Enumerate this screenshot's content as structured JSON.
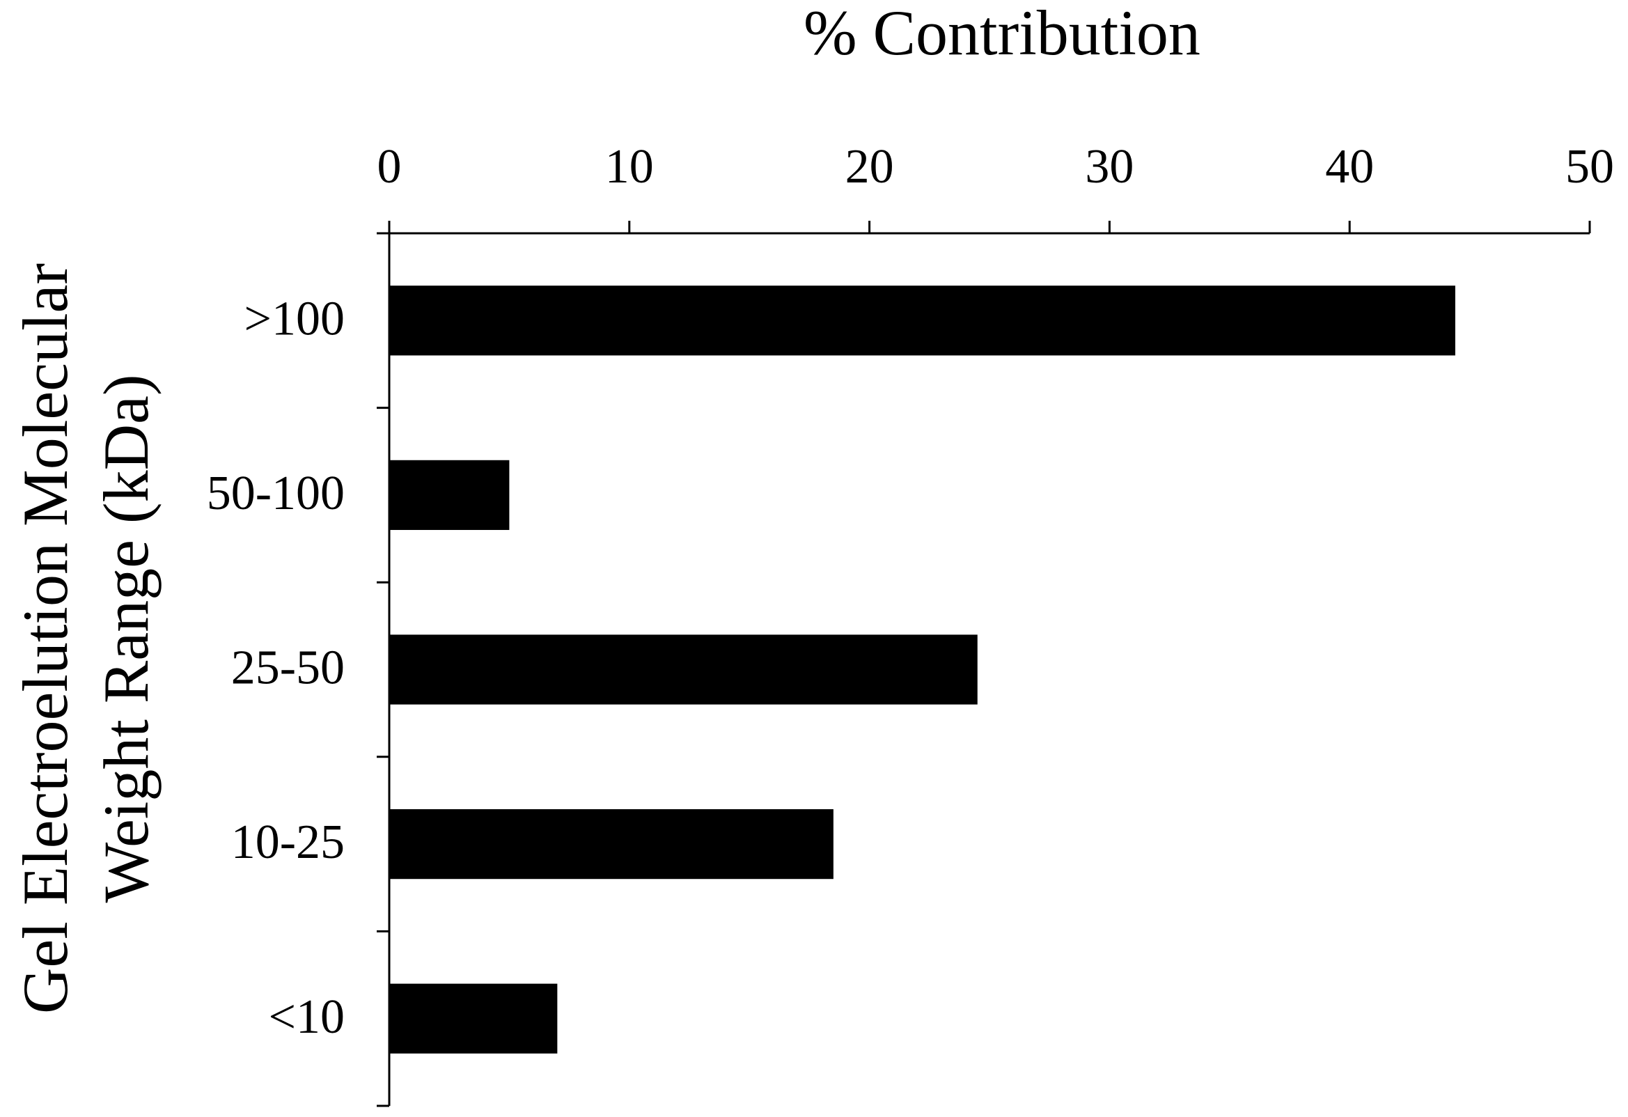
{
  "chart_data": {
    "type": "hbar",
    "title": "% Contribution",
    "ylabel": [
      "Gel Electroelution Molecular",
      "Weight Range (kDa)"
    ],
    "categories": [
      ">100",
      "50-100",
      "25-50",
      "10-25",
      "<10"
    ],
    "values": [
      44.4,
      5.0,
      24.5,
      18.5,
      7.0
    ],
    "color": "#000000",
    "xlim": [
      0,
      50
    ],
    "xticks": [
      0,
      10,
      20,
      30,
      40,
      50
    ],
    "grid": false
  }
}
